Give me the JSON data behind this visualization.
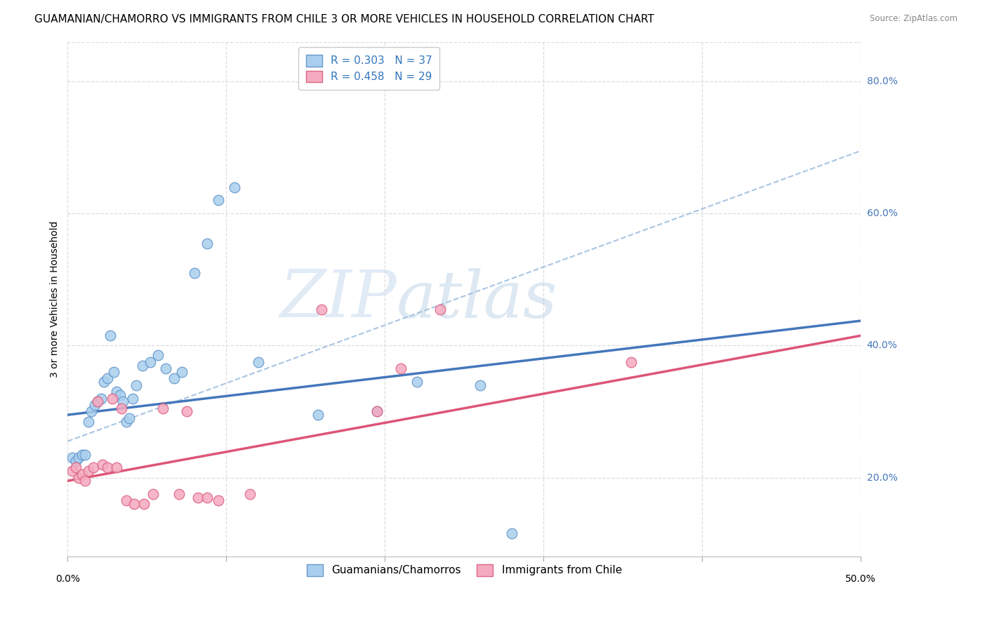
{
  "title": "GUAMANIAN/CHAMORRO VS IMMIGRANTS FROM CHILE 3 OR MORE VEHICLES IN HOUSEHOLD CORRELATION CHART",
  "source": "Source: ZipAtlas.com",
  "ylabel": "3 or more Vehicles in Household",
  "xlim": [
    0.0,
    0.5
  ],
  "ylim": [
    0.08,
    0.86
  ],
  "ytick_positions": [
    0.2,
    0.4,
    0.6,
    0.8
  ],
  "ytick_labels": [
    "20.0%",
    "40.0%",
    "60.0%",
    "80.0%"
  ],
  "xtick_positions": [
    0.0,
    0.1,
    0.2,
    0.3,
    0.4,
    0.5
  ],
  "legend_blue_text": "R = 0.303   N = 37",
  "legend_pink_text": "R = 0.458   N = 29",
  "legend_label_blue": "Guamanians/Chamorros",
  "legend_label_pink": "Immigrants from Chile",
  "blue_face_color": "#AACFEE",
  "pink_face_color": "#F5AABF",
  "blue_edge_color": "#6699CC",
  "pink_edge_color": "#DD6688",
  "blue_line_color": "#4477BB",
  "pink_line_color": "#DD5577",
  "dashed_line_color": "#99BBDD",
  "background_color": "#FFFFFF",
  "grid_color": "#DDDDDD",
  "blue_trend_intercept": 0.295,
  "blue_trend_slope": 0.285,
  "pink_trend_intercept": 0.195,
  "pink_trend_slope": 0.44,
  "dashed_trend_intercept": 0.255,
  "dashed_trend_slope": 0.88,
  "blue_scatter_x": [
    0.003,
    0.005,
    0.007,
    0.009,
    0.011,
    0.013,
    0.015,
    0.017,
    0.019,
    0.021,
    0.023,
    0.025,
    0.027,
    0.029,
    0.031,
    0.033,
    0.035,
    0.037,
    0.039,
    0.041,
    0.043,
    0.047,
    0.052,
    0.057,
    0.062,
    0.067,
    0.072,
    0.08,
    0.088,
    0.095,
    0.105,
    0.12,
    0.158,
    0.195,
    0.22,
    0.26,
    0.28
  ],
  "blue_scatter_y": [
    0.23,
    0.225,
    0.23,
    0.235,
    0.235,
    0.285,
    0.3,
    0.31,
    0.315,
    0.32,
    0.345,
    0.35,
    0.415,
    0.36,
    0.33,
    0.325,
    0.315,
    0.285,
    0.29,
    0.32,
    0.34,
    0.37,
    0.375,
    0.385,
    0.365,
    0.35,
    0.36,
    0.51,
    0.555,
    0.62,
    0.64,
    0.375,
    0.295,
    0.3,
    0.345,
    0.34,
    0.115
  ],
  "pink_scatter_x": [
    0.003,
    0.005,
    0.007,
    0.009,
    0.011,
    0.013,
    0.016,
    0.019,
    0.022,
    0.025,
    0.028,
    0.031,
    0.034,
    0.037,
    0.042,
    0.048,
    0.054,
    0.06,
    0.07,
    0.075,
    0.082,
    0.088,
    0.095,
    0.115,
    0.16,
    0.195,
    0.21,
    0.235,
    0.355
  ],
  "pink_scatter_y": [
    0.21,
    0.215,
    0.2,
    0.205,
    0.195,
    0.21,
    0.215,
    0.315,
    0.22,
    0.215,
    0.32,
    0.215,
    0.305,
    0.165,
    0.16,
    0.16,
    0.175,
    0.305,
    0.175,
    0.3,
    0.17,
    0.17,
    0.165,
    0.175,
    0.455,
    0.3,
    0.365,
    0.455,
    0.375
  ],
  "title_fontsize": 11,
  "axis_label_fontsize": 10,
  "tick_fontsize": 10,
  "legend_fontsize": 11
}
